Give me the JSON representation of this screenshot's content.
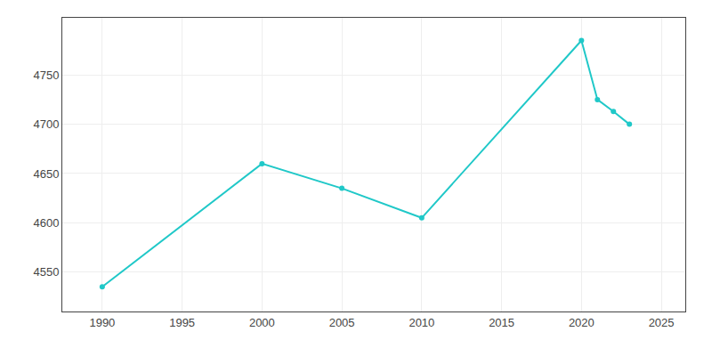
{
  "chart_data": {
    "type": "line",
    "x": [
      1990,
      2000,
      2005,
      2010,
      2020,
      2021,
      2022,
      2023
    ],
    "values": [
      4535,
      4660,
      4635,
      4605,
      4785,
      4725,
      4713,
      4700
    ],
    "color": "#20C8C8",
    "marker": "circle",
    "line_style": "solid",
    "xlim": [
      1987.5,
      2026.5
    ],
    "ylim": [
      4510,
      4808
    ],
    "xticks": [
      1990,
      1995,
      2000,
      2005,
      2010,
      2015,
      2020,
      2025
    ],
    "yticks": [
      4550,
      4600,
      4650,
      4700,
      4750
    ],
    "grid": true
  }
}
